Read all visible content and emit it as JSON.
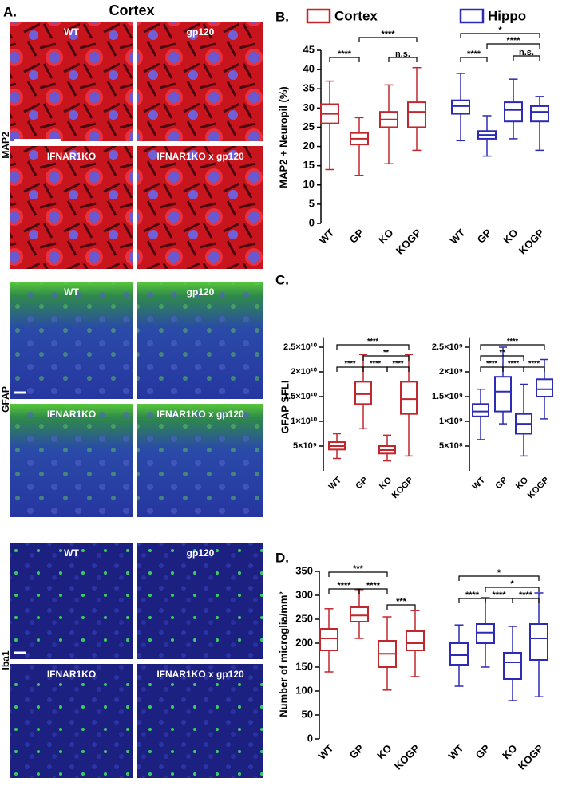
{
  "images": {
    "panel": "A.",
    "title": "Cortex",
    "rows": [
      {
        "stain": "MAP2",
        "tiles": [
          "WT",
          "gp120",
          "IFNAR1KO",
          "IFNAR1KO x gp120"
        ]
      },
      {
        "stain": "GFAP",
        "tiles": [
          "WT",
          "gp120",
          "IFNAR1KO",
          "IFNAR1KO x gp120"
        ]
      },
      {
        "stain": "Iba1",
        "tiles": [
          "WT",
          "gp120",
          "IFNAR1KO",
          "IFNAR1KO x gp120"
        ]
      }
    ]
  },
  "chart_data": [
    {
      "type": "box",
      "panel": "B.",
      "ylabel": "MAP2 + Neuropil (%)",
      "categories": [
        "WT",
        "GP",
        "KO",
        "KOGP"
      ],
      "ylim": [
        0,
        45
      ],
      "yticks": [
        0,
        5,
        10,
        15,
        20,
        25,
        30,
        35,
        40,
        45
      ],
      "series": [
        {
          "name": "Cortex",
          "color": "#c1272d",
          "values": [
            [
              14,
              26,
              28.5,
              31,
              37
            ],
            [
              12.5,
              20.5,
              22,
              23.5,
              27.5
            ],
            [
              15.5,
              25,
              27,
              29,
              36
            ],
            [
              19,
              25,
              29,
              31.5,
              40.5
            ]
          ],
          "significance": [
            "****",
            "****",
            "n.s."
          ]
        },
        {
          "name": "Hippo",
          "color": "#2b2bb5",
          "values": [
            [
              21.5,
              28.5,
              30.5,
              32,
              39
            ],
            [
              17.5,
              22,
              23,
              24,
              28
            ],
            [
              22,
              26.5,
              29.5,
              31.5,
              37.5
            ],
            [
              19,
              26.5,
              29,
              30.5,
              33
            ]
          ],
          "significance": [
            "*",
            "****",
            "****",
            "n.s."
          ]
        }
      ]
    },
    {
      "type": "box",
      "panel": "C.",
      "ylabel": "GFAP SFLI",
      "categories": [
        "WT",
        "GP",
        "KO",
        "KOGP"
      ],
      "ylim": [
        0,
        27000000000
      ],
      "yticks": [
        {
          "value": 5000000000,
          "label": "5×10⁹"
        },
        {
          "value": 10000000000,
          "label": "1×10¹⁰"
        },
        {
          "value": 15000000000,
          "label": "1.5×10¹⁰"
        },
        {
          "value": 20000000000,
          "label": "2×10¹⁰"
        },
        {
          "value": 25000000000,
          "label": "2.5×10¹⁰"
        }
      ],
      "series": [
        {
          "color": "#c1272d",
          "values": [
            [
              2500000000,
              4300000000,
              5000000000,
              5800000000,
              7500000000
            ],
            [
              8500000000,
              13500000000,
              15500000000,
              18000000000,
              23500000000
            ],
            [
              2000000000,
              3500000000,
              4200000000,
              5000000000,
              7200000000
            ],
            [
              3000000000,
              11500000000,
              14500000000,
              18000000000,
              23500000000
            ]
          ],
          "significance": [
            "****",
            "**",
            "****",
            "****",
            "****"
          ]
        }
      ]
    },
    {
      "type": "box",
      "categories": [
        "WT",
        "GP",
        "KO",
        "KOGP"
      ],
      "ylim": [
        0,
        2700000000
      ],
      "yticks": [
        {
          "value": 500000000,
          "label": "5×10⁸"
        },
        {
          "value": 1000000000,
          "label": "1×10⁹"
        },
        {
          "value": 1500000000,
          "label": "1.5×10⁹"
        },
        {
          "value": 2000000000,
          "label": "2×10⁹"
        },
        {
          "value": 2500000000,
          "label": "2.5×10⁹"
        }
      ],
      "series": [
        {
          "color": "#2b2bb5",
          "values": [
            [
              630000000,
              1100000000,
              1200000000,
              1350000000,
              1650000000
            ],
            [
              950000000,
              1200000000,
              1600000000,
              1900000000,
              2500000000
            ],
            [
              300000000,
              750000000,
              950000000,
              1150000000,
              1750000000
            ],
            [
              1050000000,
              1500000000,
              1650000000,
              1850000000,
              2250000000
            ]
          ],
          "significance": [
            "****",
            "**",
            "****",
            "****",
            "****"
          ]
        }
      ]
    },
    {
      "type": "box",
      "panel": "D.",
      "ylabel": "Number of microglia/mm²",
      "categories": [
        "WT",
        "GP",
        "KO",
        "KOGP"
      ],
      "ylim": [
        0,
        350
      ],
      "yticks": [
        0,
        50,
        100,
        150,
        200,
        250,
        300,
        350
      ],
      "series": [
        {
          "color": "#c1272d",
          "values": [
            [
              140,
              185,
              210,
              230,
              272
            ],
            [
              210,
              245,
              258,
              275,
              312
            ],
            [
              102,
              150,
              178,
              205,
              255
            ],
            [
              130,
              185,
              200,
              225,
              268
            ]
          ],
          "significance": [
            "***",
            "****",
            "****",
            "***"
          ]
        },
        {
          "color": "#2b2bb5",
          "values": [
            [
              110,
              155,
              175,
              200,
              238
            ],
            [
              150,
              200,
              222,
              240,
              295
            ],
            [
              80,
              125,
              160,
              180,
              235
            ],
            [
              88,
              165,
              210,
              240,
              305
            ]
          ],
          "significance": [
            "*",
            "*",
            "****",
            "****",
            "****"
          ]
        }
      ]
    }
  ]
}
